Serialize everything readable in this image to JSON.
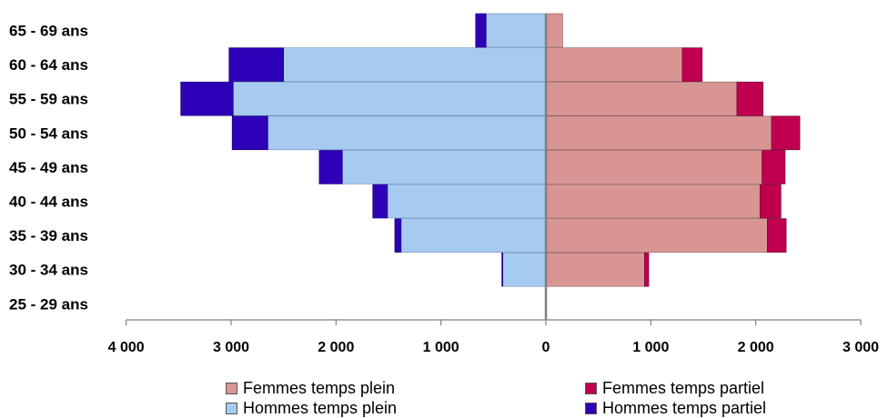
{
  "chart_data": {
    "type": "bar",
    "orientation": "horizontal-population-pyramid",
    "stacked": true,
    "categories": [
      "25 - 29 ans",
      "30 - 34 ans",
      "35 - 39 ans",
      "40 - 44 ans",
      "45 - 49 ans",
      "50 - 54 ans",
      "55 - 59 ans",
      "60 - 64 ans",
      "65 - 69 ans"
    ],
    "series": [
      {
        "name": "Femmes temps plein",
        "side": "right",
        "color": "#d99594",
        "values": [
          0,
          940,
          2110,
          2040,
          2060,
          2150,
          1820,
          1300,
          160
        ]
      },
      {
        "name": "Femmes temps partiel",
        "side": "right",
        "color": "#c0004f",
        "values": [
          0,
          40,
          180,
          200,
          220,
          270,
          250,
          190,
          0
        ]
      },
      {
        "name": "Hommes temps plein",
        "side": "left",
        "color": "#a6caf0",
        "values": [
          0,
          410,
          1380,
          1510,
          1940,
          2650,
          2980,
          2500,
          570
        ]
      },
      {
        "name": "Hommes temps partiel",
        "side": "left",
        "color": "#2e00b8",
        "values": [
          0,
          10,
          60,
          140,
          220,
          340,
          500,
          520,
          100
        ]
      }
    ],
    "xaxis": {
      "ticks": [
        -4000,
        -3000,
        -2000,
        -1000,
        0,
        1000,
        2000,
        3000
      ],
      "tick_labels": [
        "4 000",
        "3 000",
        "2 000",
        "1 000",
        "0",
        "1 000",
        "2 000",
        "3 000"
      ],
      "range": [
        -4000,
        3000
      ]
    },
    "title": "",
    "xlabel": "",
    "ylabel": "",
    "grid": false,
    "legend_position": "bottom"
  }
}
